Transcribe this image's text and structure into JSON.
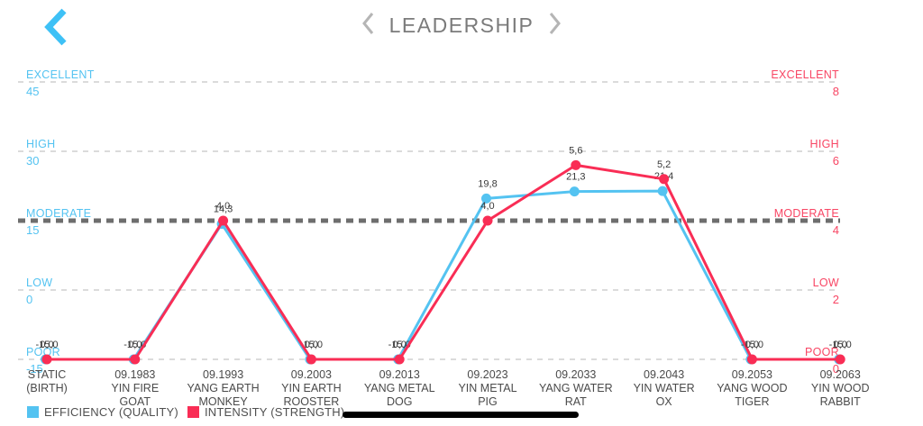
{
  "header": {
    "title": "LEADERSHIP",
    "back_icon": "chevron-left-icon",
    "prev_icon": "chevron-left-icon",
    "next_icon": "chevron-right-icon",
    "back_color": "#3EC1F6",
    "nav_chevron_color": "#b5b5b5"
  },
  "chart_data": {
    "type": "line",
    "title": "LEADERSHIP",
    "grid": "dashed-horizontal",
    "emphasized_level": "MODERATE",
    "categories": [
      [
        "STATIC",
        "(BIRTH)"
      ],
      [
        "09.1983",
        "YIN FIRE",
        "GOAT"
      ],
      [
        "09.1993",
        "YANG EARTH",
        "MONKEY"
      ],
      [
        "09.2003",
        "YIN EARTH",
        "ROOSTER"
      ],
      [
        "09.2013",
        "YANG METAL",
        "DOG"
      ],
      [
        "09.2023",
        "YIN METAL",
        "PIG"
      ],
      [
        "09.2033",
        "YANG WATER",
        "RAT"
      ],
      [
        "09.2043",
        "YIN WATER",
        "OX"
      ],
      [
        "09.2053",
        "YANG WOOD",
        "TIGER"
      ],
      [
        "09.2063",
        "YIN WOOD",
        "RABBIT"
      ]
    ],
    "series": [
      {
        "name": "EFFICIENCY (QUALITY)",
        "axis": "left",
        "color": "#54C3F1",
        "values": [
          -15,
          -15,
          14.3,
          -15,
          -15,
          19.8,
          21.3,
          21.4,
          -15,
          -15
        ],
        "point_labels": [
          "-15,0",
          "-15,0",
          "14,3",
          "-15,0",
          "-15,0",
          "19,8",
          "21,3",
          "21,4",
          "-15,0",
          "-15,0"
        ]
      },
      {
        "name": "INTENSITY (STRENGTH)",
        "axis": "right",
        "color": "#F92D55",
        "values": [
          0,
          0,
          4.0,
          0,
          0,
          4.0,
          5.6,
          5.2,
          0,
          0
        ],
        "point_labels": [
          "0,0",
          "0,0",
          "4,0",
          "0,0",
          "0,0",
          "4,0",
          "5,6",
          "5,2",
          "0,0",
          "0,0"
        ]
      }
    ],
    "left_axis": {
      "color": "#54C3F1",
      "range": [
        -15,
        45
      ],
      "levels": [
        {
          "name": "EXCELLENT",
          "value": "45"
        },
        {
          "name": "HIGH",
          "value": "30"
        },
        {
          "name": "MODERATE",
          "value": "15"
        },
        {
          "name": "LOW",
          "value": "0"
        },
        {
          "name": "POOR",
          "value": "-15"
        }
      ]
    },
    "right_axis": {
      "color": "#F84664",
      "range": [
        0,
        8
      ],
      "levels": [
        {
          "name": "EXCELLENT",
          "value": "8"
        },
        {
          "name": "HIGH",
          "value": "6"
        },
        {
          "name": "MODERATE",
          "value": "4"
        },
        {
          "name": "LOW",
          "value": "2"
        },
        {
          "name": "POOR",
          "value": "0"
        }
      ]
    },
    "label_color": "#3a3a3a",
    "category_color": "#4a4a4a"
  },
  "legend": {
    "items": [
      {
        "label": "EFFICIENCY (QUALITY)",
        "color": "#54C3F1"
      },
      {
        "label": "INTENSITY (STRENGTH)",
        "color": "#F92D55"
      }
    ]
  }
}
